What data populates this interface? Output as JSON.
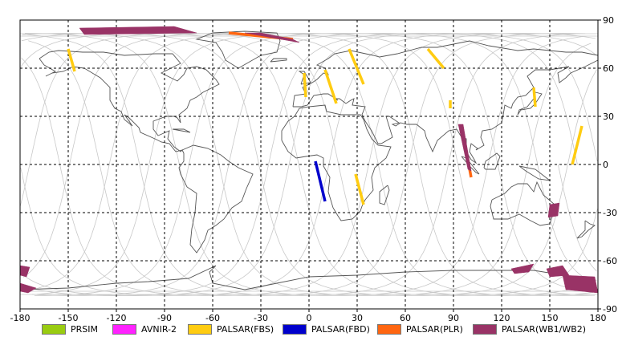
{
  "map": {
    "lon_range": [
      -180,
      180
    ],
    "lat_range": [
      -90,
      90
    ],
    "x_ticks": [
      "-180",
      "-150",
      "-120",
      "-90",
      "-60",
      "-30",
      "0",
      "30",
      "60",
      "90",
      "120",
      "150",
      "180"
    ],
    "y_ticks": [
      "90",
      "60",
      "30",
      "0",
      "-30",
      "-60",
      "-90"
    ],
    "grid": "dashed",
    "background": "#ffffff",
    "coastline_color": "#555555",
    "orbit_color": "#c8c8c8"
  },
  "legend": [
    {
      "label": "PRSIM",
      "color": "#99cc11"
    },
    {
      "label": "AVNIR-2",
      "color": "#ff22ff"
    },
    {
      "label": "PALSAR(FBS)",
      "color": "#ffcc11"
    },
    {
      "label": "PALSAR(FBD)",
      "color": "#0000cc"
    },
    {
      "label": "PALSAR(PLR)",
      "color": "#ff6611"
    },
    {
      "label": "PALSAR(WB1/WB2)",
      "color": "#993366"
    }
  ],
  "observations": [
    {
      "sensor": "PALSAR(FBS)",
      "points": [
        [
          -150,
          72
        ],
        [
          -146,
          58
        ]
      ]
    },
    {
      "sensor": "PALSAR(FBS)",
      "points": [
        [
          -3,
          57
        ],
        [
          -2,
          42
        ]
      ]
    },
    {
      "sensor": "PALSAR(FBS)",
      "points": [
        [
          10,
          59
        ],
        [
          17,
          38
        ]
      ]
    },
    {
      "sensor": "PALSAR(FBS)",
      "points": [
        [
          25,
          72
        ],
        [
          34,
          50
        ]
      ]
    },
    {
      "sensor": "PALSAR(FBS)",
      "points": [
        [
          74,
          72
        ],
        [
          84,
          60
        ]
      ]
    },
    {
      "sensor": "PALSAR(FBS)",
      "points": [
        [
          88,
          40
        ],
        [
          88,
          35
        ]
      ]
    },
    {
      "sensor": "PALSAR(FBS)",
      "points": [
        [
          29,
          -6
        ],
        [
          34,
          -25
        ]
      ]
    },
    {
      "sensor": "PALSAR(FBS)",
      "points": [
        [
          140,
          48
        ],
        [
          141,
          36
        ]
      ]
    },
    {
      "sensor": "PALSAR(FBS)",
      "points": [
        [
          170,
          24
        ],
        [
          164,
          0
        ]
      ]
    },
    {
      "sensor": "PALSAR(FBD)",
      "points": [
        [
          4,
          2
        ],
        [
          10,
          -23
        ]
      ]
    },
    {
      "sensor": "PALSAR(PLR)",
      "points": [
        [
          -50,
          82
        ],
        [
          -10,
          78
        ]
      ]
    },
    {
      "sensor": "PALSAR(PLR)",
      "points": [
        [
          95,
          24
        ],
        [
          101,
          -8
        ]
      ]
    },
    {
      "sensor": "PALSAR(WB1/WB2)",
      "polygon": [
        [
          -143,
          85
        ],
        [
          -84,
          86
        ],
        [
          -70,
          82
        ],
        [
          -140,
          81
        ]
      ]
    },
    {
      "sensor": "PALSAR(WB1/WB2)",
      "polygon": [
        [
          -40,
          82
        ],
        [
          -6,
          76
        ],
        [
          -10,
          78
        ],
        [
          -30,
          82
        ]
      ]
    },
    {
      "sensor": "PALSAR(WB1/WB2)",
      "polygon": [
        [
          93,
          25
        ],
        [
          99,
          -3
        ],
        [
          101,
          -4
        ],
        [
          96,
          25
        ]
      ]
    },
    {
      "sensor": "PALSAR(WB1/WB2)",
      "polygon": [
        [
          150,
          -25
        ],
        [
          156,
          -24
        ],
        [
          155,
          -32
        ],
        [
          149,
          -33
        ]
      ]
    },
    {
      "sensor": "PALSAR(WB1/WB2)",
      "polygon": [
        [
          126,
          -65
        ],
        [
          140,
          -62
        ],
        [
          137,
          -67
        ],
        [
          128,
          -68
        ]
      ]
    },
    {
      "sensor": "PALSAR(WB1/WB2)",
      "polygon": [
        [
          148,
          -65
        ],
        [
          158,
          -63
        ],
        [
          162,
          -69
        ],
        [
          150,
          -70
        ]
      ]
    },
    {
      "sensor": "PALSAR(WB1/WB2)",
      "polygon": [
        [
          158,
          -69
        ],
        [
          178,
          -70
        ],
        [
          180,
          -80
        ],
        [
          160,
          -78
        ]
      ]
    },
    {
      "sensor": "PALSAR(WB1/WB2)",
      "polygon": [
        [
          -180,
          -63
        ],
        [
          -174,
          -64
        ],
        [
          -176,
          -70
        ],
        [
          -180,
          -69
        ]
      ]
    },
    {
      "sensor": "PALSAR(WB1/WB2)",
      "polygon": [
        [
          -180,
          -74
        ],
        [
          -170,
          -77
        ],
        [
          -175,
          -80
        ],
        [
          -180,
          -79
        ]
      ]
    }
  ]
}
